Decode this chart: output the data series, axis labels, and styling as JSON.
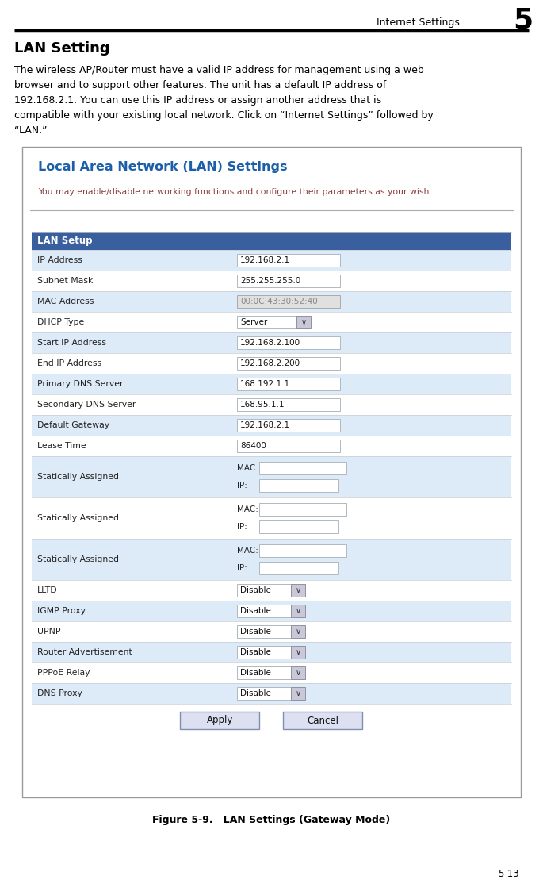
{
  "page_title": "Internet Settings",
  "page_number": "5",
  "section_title": "LAN Setting",
  "body_text_lines": [
    "The wireless AP/Router must have a valid IP address for management using a web",
    "browser and to support other features. The unit has a default IP address of",
    "192.168.2.1. You can use this IP address or assign another address that is",
    "compatible with your existing local network. Click on “Internet Settings” followed by",
    "“LAN.”"
  ],
  "box_title": "Local Area Network (LAN) Settings",
  "box_subtitle": "You may enable/disable networking functions and configure their parameters as your wish.",
  "table_header": "LAN Setup",
  "table_header_bg": "#3a5f9f",
  "table_header_fg": "#ffffff",
  "row_bg_even": "#ddeaf7",
  "row_bg_odd": "#ffffff",
  "row_border": "#c8cdd2",
  "rows_simple": [
    [
      "IP Address",
      "192.168.2.1",
      false,
      false
    ],
    [
      "Subnet Mask",
      "255.255.255.0",
      false,
      false
    ],
    [
      "MAC Address",
      "00:0C:43:30:52:40",
      true,
      false
    ],
    [
      "DHCP Type",
      "Server",
      false,
      true
    ],
    [
      "Start IP Address",
      "192.168.2.100",
      false,
      false
    ],
    [
      "End IP Address",
      "192.168.2.200",
      false,
      false
    ],
    [
      "Primary DNS Server",
      "168.192.1.1",
      false,
      false
    ],
    [
      "Secondary DNS Server",
      "168.95.1.1",
      false,
      false
    ],
    [
      "Default Gateway",
      "192.168.2.1",
      false,
      false
    ],
    [
      "Lease Time",
      "86400",
      false,
      false
    ]
  ],
  "rows_static": [
    "Statically Assigned",
    "Statically Assigned",
    "Statically Assigned"
  ],
  "rows_disable": [
    [
      "LLTD",
      "Disable"
    ],
    [
      "IGMP Proxy",
      "Disable"
    ],
    [
      "UPNP",
      "Disable"
    ],
    [
      "Router Advertisement",
      "Disable"
    ],
    [
      "PPPoE Relay",
      "Disable"
    ],
    [
      "DNS Proxy",
      "Disable"
    ]
  ],
  "figure_caption": "Figure 5-9.   LAN Settings (Gateway Mode)",
  "page_num_label": "5-13",
  "box_border": "#999999",
  "title_color": "#1a5fa8",
  "subtitle_color": "#8b4040"
}
